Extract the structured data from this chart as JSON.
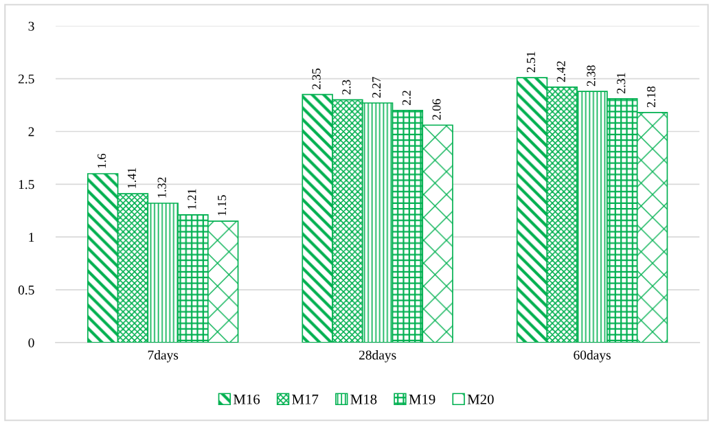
{
  "chart_data": {
    "type": "bar",
    "categories": [
      "7days",
      "28days",
      "60days"
    ],
    "series": [
      {
        "name": "M16",
        "color": "#00b050",
        "values": [
          1.6,
          2.35,
          2.51
        ]
      },
      {
        "name": "M17",
        "color": "#00b050",
        "values": [
          1.41,
          2.3,
          2.42
        ]
      },
      {
        "name": "M18",
        "color": "#00b050",
        "values": [
          1.32,
          2.27,
          2.38
        ]
      },
      {
        "name": "M19",
        "color": "#00b050",
        "values": [
          1.21,
          2.2,
          2.31
        ]
      },
      {
        "name": "M20",
        "color": "#00b050",
        "values": [
          1.15,
          2.06,
          2.18
        ]
      }
    ],
    "ylim": [
      0,
      3
    ],
    "yticks": [
      0,
      0.5,
      1,
      1.5,
      2,
      2.5,
      3
    ],
    "grid": "y",
    "legend": "bottom",
    "data_labels": true
  }
}
